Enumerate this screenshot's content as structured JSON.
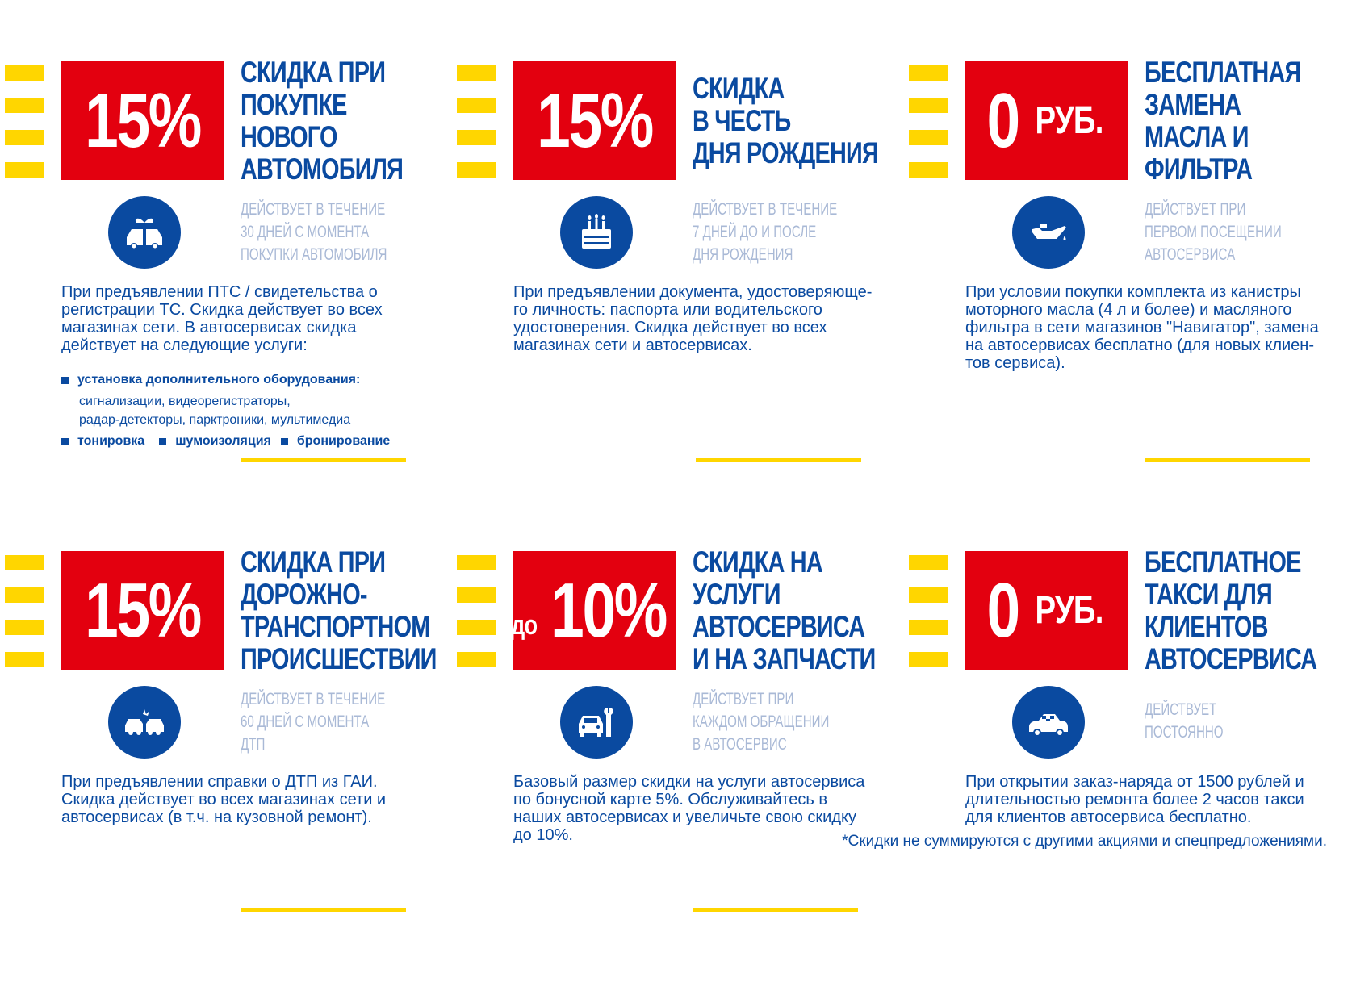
{
  "cards": [
    {
      "badge_big": "15%",
      "title": [
        "СКИДКА ПРИ",
        "ПОКУПКЕ",
        "НОВОГО",
        "АВТОМОБИЛЯ"
      ],
      "validity": [
        "ДЕЙСТВУЕТ В ТЕЧЕНИЕ",
        "30 ДНЕЙ С МОМЕНТА",
        "ПОКУПКИ АВТОМОБИЛЯ"
      ],
      "description": "При предъявлении ПТС / свидетельства о регистрации ТС. Скидка действует во всех магазинах сети. В автосервисах скидка действует на следующие услуги:",
      "bullets": {
        "item1": "установка дополнительного оборудования:",
        "item1_sub1": "сигнализации, видеорегистраторы,",
        "item1_sub2": "радар-детекторы, парктроники, мультимедиа",
        "item2": "тонировка",
        "item3": "шумоизоляция",
        "item4": "бронирование"
      },
      "icon": "gift-car-icon"
    },
    {
      "badge_big": "15%",
      "title": [
        "СКИДКА",
        "В ЧЕСТЬ",
        "ДНЯ РОЖДЕНИЯ"
      ],
      "validity": [
        "ДЕЙСТВУЕТ В ТЕЧЕНИЕ",
        "7 ДНЕЙ ДО И ПОСЛЕ",
        "ДНЯ РОЖДЕНИЯ"
      ],
      "description": "При предъявлении документа, удостоверяюще-го личность: паспорта или водительского удостоверения. Скидка действует во всех магазинах сети и автосервисах.",
      "icon": "birthday-cake-icon"
    },
    {
      "badge_big": "0",
      "badge_suffix": "РУБ.",
      "title": [
        "БЕСПЛАТНАЯ",
        "ЗАМЕНА",
        "МАСЛА И",
        "ФИЛЬТРА"
      ],
      "validity": [
        "ДЕЙСТВУЕТ ПРИ",
        "ПЕРВОМ ПОСЕЩЕНИИ",
        "АВТОСЕРВИСА"
      ],
      "description": "При условии покупки комплекта из канистры моторного масла (4 л и более) и масляного фильтра в сети магазинов \"Навигатор\", замена на автосервисах бесплатно (для новых клиен-тов сервиса).",
      "icon": "oil-can-icon"
    },
    {
      "badge_big": "15%",
      "title": [
        "СКИДКА ПРИ",
        "ДОРОЖНО-",
        "ТРАНСПОРТНОМ",
        "ПРОИСШЕСТВИИ"
      ],
      "validity": [
        "ДЕЙСТВУЕТ В ТЕЧЕНИЕ",
        "60 ДНЕЙ С МОМЕНТА",
        "ДТП"
      ],
      "description": "При предъявлении справки о ДТП из ГАИ. Скидка действует во всех магазинах сети и автосервисах (в т.ч. на кузовной ремонт).",
      "icon": "car-crash-icon"
    },
    {
      "badge_prefix": "до",
      "badge_big": "10%",
      "title": [
        "СКИДКА НА",
        "УСЛУГИ",
        "АВТОСЕРВИСА",
        "И НА ЗАПЧАСТИ"
      ],
      "validity": [
        "ДЕЙСТВУЕТ ПРИ",
        "КАЖДОМ ОБРАЩЕНИИ",
        "В АВТОСЕРВИС"
      ],
      "description": "Базовый размер скидки на услуги автосервиса по бонусной карте 5%. Обслуживайтесь в наших автосервисах и увеличьте свою скидку до 10%.",
      "icon": "car-service-wrench-icon"
    },
    {
      "badge_big": "0",
      "badge_suffix": "РУБ.",
      "title": [
        "БЕСПЛАТНОЕ",
        "ТАКСИ ДЛЯ",
        "КЛИЕНТОВ",
        "АВТОСЕРВИСА"
      ],
      "validity": [
        "ДЕЙСТВУЕТ",
        "ПОСТОЯННО"
      ],
      "description": "При открытии заказ-наряда от 1500 рублей и длительностью ремонта более 2 часов такси для клиентов автосервиса бесплатно.",
      "icon": "taxi-icon"
    }
  ],
  "footnote": "*Скидки не суммируются с другими акциями и спецпредложениями.",
  "colors": {
    "red": "#e3000f",
    "blue": "#0a4aa0",
    "yellow": "#ffd600",
    "light_blue": "#a9b9d6"
  }
}
